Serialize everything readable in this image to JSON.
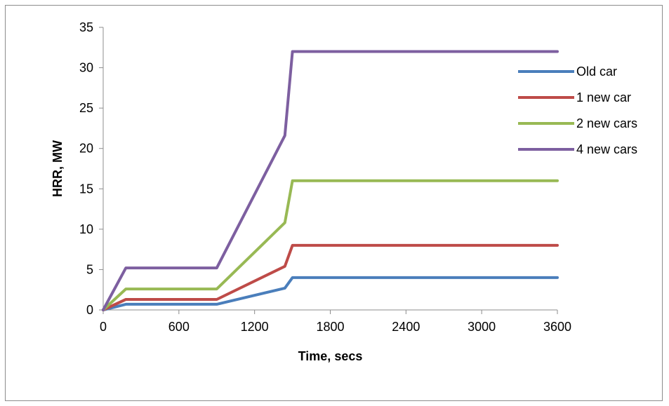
{
  "chart_data": {
    "type": "line",
    "title": "",
    "xlabel": "Time, secs",
    "ylabel": "HRR, MW",
    "xlim": [
      0,
      3600
    ],
    "ylim": [
      0,
      35
    ],
    "xticks": [
      0,
      600,
      1200,
      1800,
      2400,
      3000,
      3600
    ],
    "yticks": [
      0,
      5,
      10,
      15,
      20,
      25,
      30,
      35
    ],
    "grid": false,
    "legend_position": "right",
    "series": [
      {
        "name": "Old car",
        "color": "#4a7ebb",
        "points": [
          [
            0,
            0
          ],
          [
            180,
            0.7
          ],
          [
            900,
            0.7
          ],
          [
            1440,
            2.7
          ],
          [
            1500,
            4.0
          ],
          [
            3600,
            4.0
          ]
        ]
      },
      {
        "name": "1 new car",
        "color": "#be4b48",
        "points": [
          [
            0,
            0
          ],
          [
            180,
            1.3
          ],
          [
            900,
            1.3
          ],
          [
            1440,
            5.4
          ],
          [
            1500,
            8.0
          ],
          [
            3600,
            8.0
          ]
        ]
      },
      {
        "name": "2 new cars",
        "color": "#98b954",
        "points": [
          [
            0,
            0
          ],
          [
            180,
            2.6
          ],
          [
            900,
            2.6
          ],
          [
            1440,
            10.8
          ],
          [
            1500,
            16.0
          ],
          [
            3600,
            16.0
          ]
        ]
      },
      {
        "name": "4 new cars",
        "color": "#7d5fa0",
        "points": [
          [
            0,
            0
          ],
          [
            180,
            5.2
          ],
          [
            900,
            5.2
          ],
          [
            1440,
            21.6
          ],
          [
            1500,
            32.0
          ],
          [
            3600,
            32.0
          ]
        ]
      }
    ]
  }
}
